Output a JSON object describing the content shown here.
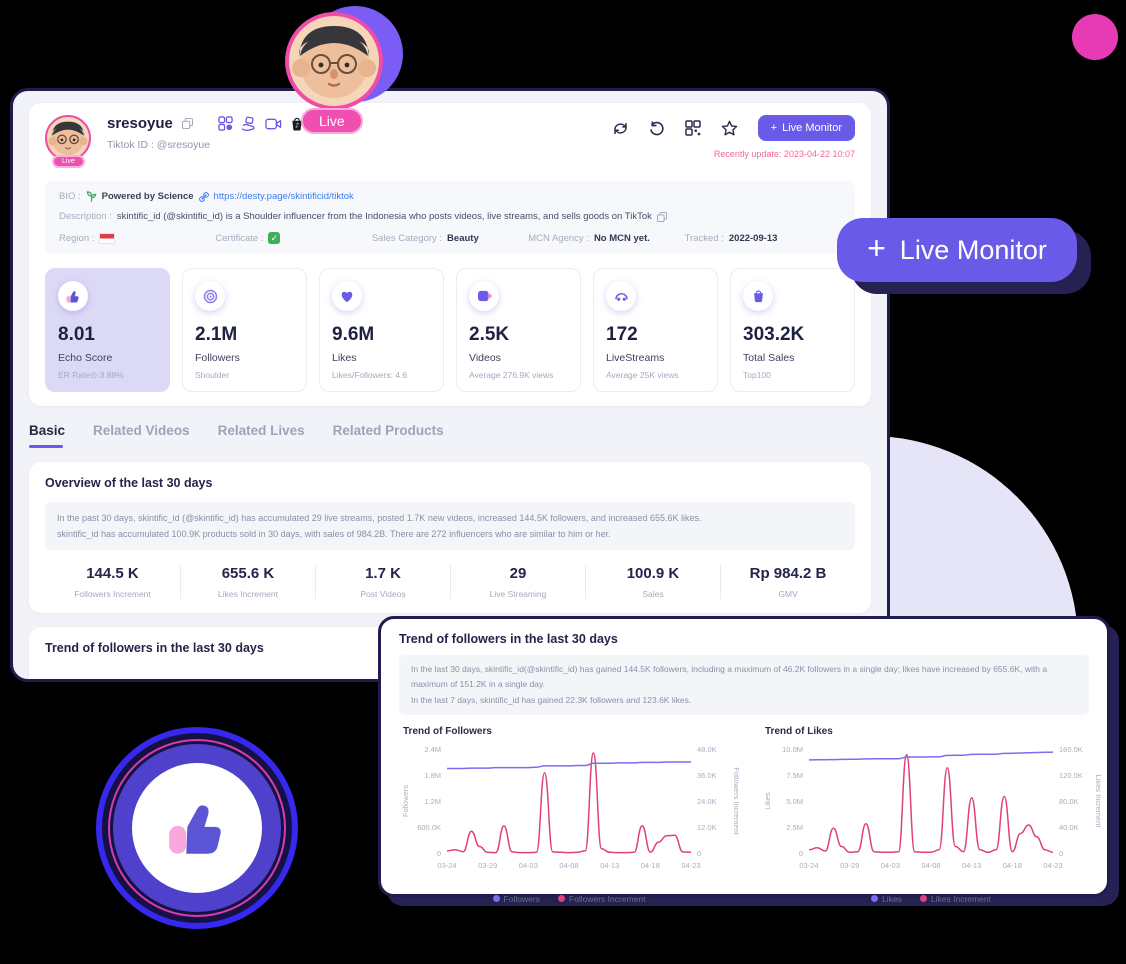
{
  "header": {
    "username": "sresoyue",
    "tiktok_id": "Tiktok ID : @sresoyue",
    "live_badge": "Live",
    "plus": "+",
    "live_monitor": "Live Monitor",
    "recently_update": "Recently update: 2023-04-22 10:07"
  },
  "profile_info": {
    "bio_label": "BIO :",
    "bio_text": "Powered by Science",
    "bio_link": "https://desty.page/skintificid/tiktok",
    "description_label": "Description :",
    "description_text": "skintific_id (@skintific_id) is a Shoulder influencer from the Indonesia who posts videos, live streams, and sells goods on TikTok",
    "meta": [
      {
        "label": "Region :",
        "value": ""
      },
      {
        "label": "Certificate :",
        "value": ""
      },
      {
        "label": "Sales Category :",
        "value": "Beauty"
      },
      {
        "label": "MCN Agency :",
        "value": "No MCN yet."
      },
      {
        "label": "Tracked :",
        "value": "2022-09-13"
      }
    ]
  },
  "stat_cards": [
    {
      "icon": "thumbs-up-icon",
      "value": "8.01",
      "label": "Echo Score",
      "sub": "ER Rate⊙:3.88%"
    },
    {
      "icon": "target-icon",
      "value": "2.1M",
      "label": "Followers",
      "sub": "Shoulder"
    },
    {
      "icon": "heart-icon",
      "value": "9.6M",
      "label": "Likes",
      "sub": "Likes/Followers: 4.6"
    },
    {
      "icon": "video-icon",
      "value": "2.5K",
      "label": "Videos",
      "sub": "Average 276.9K views"
    },
    {
      "icon": "live-icon",
      "value": "172",
      "label": "LiveStreams",
      "sub": "Average 25K views"
    },
    {
      "icon": "bag-icon",
      "value": "303.2K",
      "label": "Total Sales",
      "sub": "Top100"
    }
  ],
  "tabs": [
    {
      "label": "Basic"
    },
    {
      "label": "Related Videos"
    },
    {
      "label": "Related Lives"
    },
    {
      "label": "Related Products"
    }
  ],
  "overview": {
    "title": "Overview of the last 30 days",
    "summary_line1": "In the past 30 days, skintific_id (@skintific_id) has accumulated 29 live streams, posted 1.7K new videos, increased 144.5K followers, and increased 655.6K likes.",
    "summary_line2": "skintific_id has accumulated 100.9K products sold in 30 days, with sales of 984.2B. There are 272 influencers who are similar to him or her.",
    "stats": [
      {
        "value": "144.5 K",
        "label": "Followers Increment"
      },
      {
        "value": "655.6 K",
        "label": "Likes Increment"
      },
      {
        "value": "1.7 K",
        "label": "Post Videos"
      },
      {
        "value": "29",
        "label": "Live Streaming"
      },
      {
        "value": "100.9 K",
        "label": "Sales"
      },
      {
        "value": "Rp 984.2 B",
        "label": "GMV"
      }
    ]
  },
  "trend_bottom_heading": "Trend of followers in the last 30 days",
  "trend_panel": {
    "title": "Trend of followers in the last 30 days",
    "summary_line1": "In the last 30 days, skintific_id(@skintific_id) has gained 144.5K followers, including a maximum of 46.2K followers in a single day; likes have increased by 655.6K, with a maximum of 151.2K in a single day.",
    "summary_line2": "In the last 7 days, skintific_id has gained 22.3K followers and 123.6K likes."
  },
  "colors": {
    "purple": "#6a5ae8",
    "purple_line": "#7b6cf0",
    "pink_line": "#e0417e",
    "pink_accent": "#ee4fb0",
    "navy": "#23244a",
    "link_blue": "#3b7cf5",
    "update_pink": "#f0679f",
    "lavender_card": "#dcd9f6"
  },
  "chart_data": [
    {
      "type": "line",
      "title": "Trend of Followers",
      "x": [
        "03-24",
        "03-25",
        "03-26",
        "03-27",
        "03-28",
        "03-29",
        "03-30",
        "03-31",
        "04-01",
        "04-02",
        "04-03",
        "04-04",
        "04-05",
        "04-06",
        "04-07",
        "04-08",
        "04-09",
        "04-10",
        "04-11",
        "04-12",
        "04-13",
        "04-14",
        "04-15",
        "04-16",
        "04-17",
        "04-18",
        "04-19",
        "04-20",
        "04-21",
        "04-22",
        "04-23"
      ],
      "xtick_idx": [
        0,
        5,
        10,
        15,
        20,
        25,
        30
      ],
      "ylabel_left": "Followers",
      "ylabel_right": "Followers Increment",
      "ylim_left": [
        0,
        2.4
      ],
      "ylim_right": [
        0,
        48
      ],
      "yticks_left": [
        "0",
        "600.0K",
        "1.2M",
        "1.8M",
        "2.4M"
      ],
      "yticks_right": [
        "0",
        "12.0K",
        "24.0K",
        "36.0K",
        "48.0K"
      ],
      "grid": false,
      "legend_position": "bottom",
      "series": [
        {
          "name": "Followers",
          "axis": "left",
          "unit": "M",
          "values": [
            1.95,
            1.95,
            1.95,
            1.96,
            1.96,
            1.96,
            1.97,
            1.97,
            1.97,
            1.97,
            1.97,
            1.98,
            2.01,
            2.01,
            2.01,
            2.01,
            2.02,
            2.02,
            2.07,
            2.07,
            2.07,
            2.08,
            2.08,
            2.08,
            2.09,
            2.09,
            2.09,
            2.1,
            2.1,
            2.1,
            2.1
          ]
        },
        {
          "name": "Followers Increment",
          "axis": "right",
          "unit": "K",
          "values": [
            1.0,
            1.5,
            0.6,
            10.0,
            3.0,
            0.3,
            0.2,
            12.5,
            0.5,
            0.2,
            0.2,
            0.3,
            37.0,
            0.5,
            0.3,
            0.2,
            0.3,
            1.0,
            46.2,
            2.0,
            0.3,
            0.2,
            0.2,
            0.3,
            12.5,
            0.4,
            5.0,
            8.0,
            8.2,
            0.5,
            0.3
          ]
        }
      ]
    },
    {
      "type": "line",
      "title": "Trend of Likes",
      "x": [
        "03-24",
        "03-25",
        "03-26",
        "03-27",
        "03-28",
        "03-29",
        "03-30",
        "03-31",
        "04-01",
        "04-02",
        "04-03",
        "04-04",
        "04-05",
        "04-06",
        "04-07",
        "04-08",
        "04-09",
        "04-10",
        "04-11",
        "04-12",
        "04-13",
        "04-14",
        "04-15",
        "04-16",
        "04-17",
        "04-18",
        "04-19",
        "04-20",
        "04-21",
        "04-22",
        "04-23"
      ],
      "xtick_idx": [
        0,
        5,
        10,
        15,
        20,
        25,
        30
      ],
      "ylabel_left": "Likes",
      "ylabel_right": "Likes Increment",
      "ylim_left": [
        0,
        10
      ],
      "ylim_right": [
        0,
        160
      ],
      "yticks_left": [
        "0",
        "2.5M",
        "5.0M",
        "7.5M",
        "10.0M"
      ],
      "yticks_right": [
        "0",
        "40.0K",
        "80.0K",
        "120.0K",
        "160.0K"
      ],
      "grid": false,
      "legend_position": "bottom",
      "series": [
        {
          "name": "Likes",
          "axis": "left",
          "unit": "M",
          "values": [
            8.95,
            8.96,
            8.97,
            8.98,
            9.0,
            9.01,
            9.02,
            9.05,
            9.06,
            9.06,
            9.07,
            9.07,
            9.22,
            9.23,
            9.23,
            9.24,
            9.25,
            9.38,
            9.39,
            9.4,
            9.48,
            9.49,
            9.49,
            9.5,
            9.58,
            9.59,
            9.62,
            9.64,
            9.66,
            9.68,
            9.7
          ]
        },
        {
          "name": "Likes Increment",
          "axis": "right",
          "unit": "K",
          "values": [
            5,
            8,
            3,
            38,
            10,
            1,
            2,
            45,
            2,
            1,
            1,
            2,
            151.2,
            2,
            1,
            1,
            5,
            131,
            10,
            2,
            85,
            5,
            1,
            5,
            87,
            2,
            30,
            43,
            25,
            5,
            1
          ]
        }
      ]
    }
  ]
}
